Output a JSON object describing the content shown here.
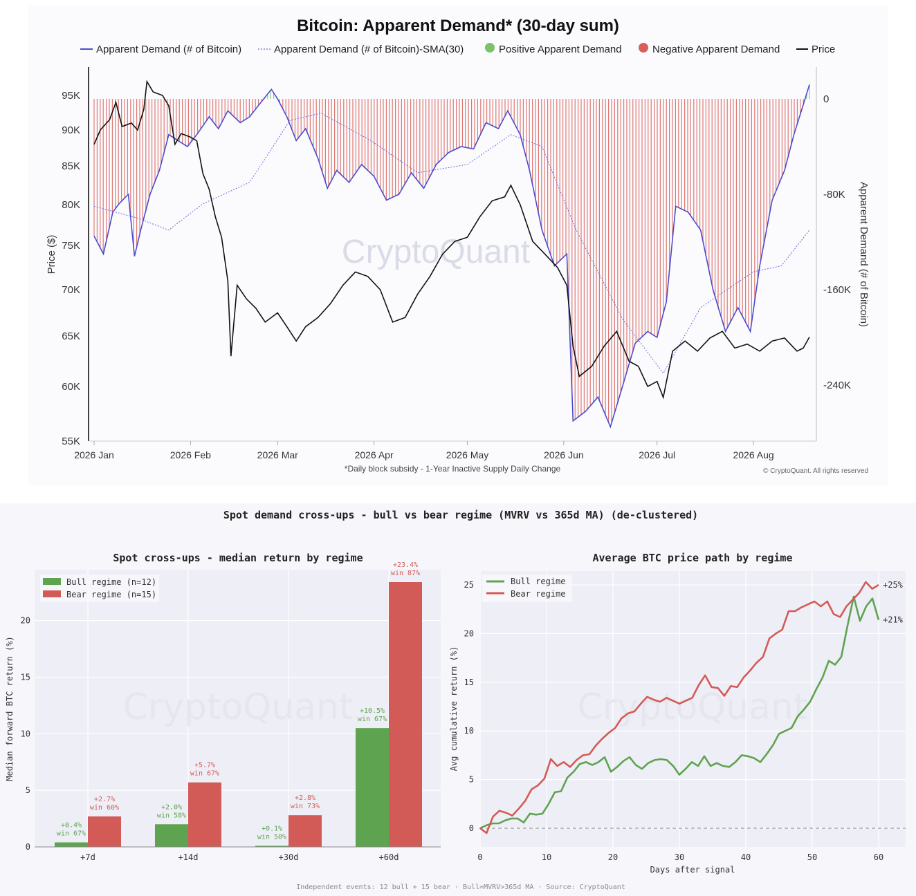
{
  "chart_data": [
    {
      "type": "line",
      "title": "Bitcoin: Apparent Demand* (30-day sum)",
      "ylabel": "Price ($)",
      "y2label": "Apparent Demand (# of Bitcoin)",
      "footnote": "*Daily block subsidy - 1-Year Inactive Supply Daily Change",
      "copyright": "© CryptoQuant. All rights reserved",
      "watermark": "CryptoQuant",
      "x_ticks": [
        "2026 Jan",
        "2026 Feb",
        "2026 Mar",
        "2026 Apr",
        "2026 May",
        "2026 Jun",
        "2026 Jul",
        "2026 Aug"
      ],
      "y_ticks": [
        "95K",
        "90K",
        "85K",
        "80K",
        "75K",
        "70K",
        "65K",
        "60K",
        "55K"
      ],
      "y2_ticks": [
        "0",
        "-80K",
        "-160K",
        "-240K"
      ],
      "ylim": [
        55000,
        98000
      ],
      "y2lim": [
        -287000,
        27000
      ],
      "legend": [
        {
          "label": "Apparent Demand (# of Bitcoin)",
          "color": "#4b4bd1",
          "style": "line"
        },
        {
          "label": "Apparent Demand (# of Bitcoin)-SMA(30)",
          "color": "#6a6ae0",
          "style": "dotted"
        },
        {
          "label": "Positive Apparent Demand",
          "color": "#7ac26b",
          "style": "dot"
        },
        {
          "label": "Negative Apparent Demand",
          "color": "#d9605a",
          "style": "dot"
        },
        {
          "label": "Price",
          "color": "#111111",
          "style": "line"
        }
      ],
      "series": [
        {
          "name": "Price",
          "unit": "USD",
          "points": [
            [
              "2026-01-01",
              88000
            ],
            [
              "2026-01-03",
              90000
            ],
            [
              "2026-01-06",
              91500
            ],
            [
              "2026-01-08",
              94000
            ],
            [
              "2026-01-10",
              90500
            ],
            [
              "2026-01-13",
              91000
            ],
            [
              "2026-01-15",
              90000
            ],
            [
              "2026-01-17",
              93000
            ],
            [
              "2026-01-18",
              97000
            ],
            [
              "2026-01-20",
              95500
            ],
            [
              "2026-01-23",
              95000
            ],
            [
              "2026-01-25",
              93500
            ],
            [
              "2026-01-27",
              88000
            ],
            [
              "2026-01-29",
              89500
            ],
            [
              "2026-02-01",
              89000
            ],
            [
              "2026-02-03",
              88500
            ],
            [
              "2026-02-05",
              84000
            ],
            [
              "2026-02-07",
              82000
            ],
            [
              "2026-02-09",
              78500
            ],
            [
              "2026-02-11",
              76000
            ],
            [
              "2026-02-13",
              71000
            ],
            [
              "2026-02-14",
              63000
            ],
            [
              "2026-02-16",
              70500
            ],
            [
              "2026-02-19",
              69000
            ],
            [
              "2026-02-22",
              68000
            ],
            [
              "2026-02-25",
              66500
            ],
            [
              "2026-03-01",
              67500
            ],
            [
              "2026-03-04",
              66000
            ],
            [
              "2026-03-07",
              64500
            ],
            [
              "2026-03-10",
              66000
            ],
            [
              "2026-03-14",
              67000
            ],
            [
              "2026-03-18",
              68500
            ],
            [
              "2026-03-22",
              70500
            ],
            [
              "2026-03-26",
              72000
            ],
            [
              "2026-03-30",
              71500
            ],
            [
              "2026-04-03",
              70000
            ],
            [
              "2026-04-07",
              66500
            ],
            [
              "2026-04-11",
              67000
            ],
            [
              "2026-04-15",
              69500
            ],
            [
              "2026-04-19",
              71500
            ],
            [
              "2026-04-23",
              74000
            ],
            [
              "2026-04-27",
              75500
            ],
            [
              "2026-05-01",
              76000
            ],
            [
              "2026-05-05",
              78500
            ],
            [
              "2026-05-09",
              80500
            ],
            [
              "2026-05-13",
              81000
            ],
            [
              "2026-05-15",
              82500
            ],
            [
              "2026-05-18",
              80000
            ],
            [
              "2026-05-22",
              75500
            ],
            [
              "2026-05-26",
              74000
            ],
            [
              "2026-05-30",
              72500
            ],
            [
              "2026-06-02",
              70500
            ],
            [
              "2026-06-04",
              64000
            ],
            [
              "2026-06-06",
              61000
            ],
            [
              "2026-06-10",
              62000
            ],
            [
              "2026-06-14",
              64000
            ],
            [
              "2026-06-18",
              65500
            ],
            [
              "2026-06-22",
              62500
            ],
            [
              "2026-06-25",
              62000
            ],
            [
              "2026-06-28",
              60000
            ],
            [
              "2026-07-01",
              60500
            ],
            [
              "2026-07-03",
              59000
            ],
            [
              "2026-07-06",
              63500
            ],
            [
              "2026-07-10",
              64500
            ],
            [
              "2026-07-14",
              63500
            ],
            [
              "2026-07-18",
              64800
            ],
            [
              "2026-07-22",
              65500
            ],
            [
              "2026-07-26",
              63800
            ],
            [
              "2026-07-30",
              64200
            ],
            [
              "2026-08-03",
              63500
            ],
            [
              "2026-08-07",
              64500
            ],
            [
              "2026-08-11",
              64800
            ],
            [
              "2026-08-15",
              63500
            ],
            [
              "2026-08-17",
              63800
            ],
            [
              "2026-08-19",
              64900
            ]
          ]
        },
        {
          "name": "Apparent Demand (# of Bitcoin)",
          "unit": "BTC",
          "points": [
            [
              "2026-01-01",
              -115000
            ],
            [
              "2026-01-04",
              -130000
            ],
            [
              "2026-01-07",
              -95000
            ],
            [
              "2026-01-09",
              -88000
            ],
            [
              "2026-01-12",
              -80000
            ],
            [
              "2026-01-14",
              -132000
            ],
            [
              "2026-01-16",
              -110000
            ],
            [
              "2026-01-19",
              -80000
            ],
            [
              "2026-01-22",
              -60000
            ],
            [
              "2026-01-25",
              -30000
            ],
            [
              "2026-01-28",
              -35000
            ],
            [
              "2026-01-31",
              -40000
            ],
            [
              "2026-02-03",
              -30000
            ],
            [
              "2026-02-07",
              -15000
            ],
            [
              "2026-02-10",
              -25000
            ],
            [
              "2026-02-13",
              -10000
            ],
            [
              "2026-02-17",
              -20000
            ],
            [
              "2026-02-20",
              -15000
            ],
            [
              "2026-02-23",
              -5000
            ],
            [
              "2026-02-27",
              8000
            ],
            [
              "2026-03-01",
              0
            ],
            [
              "2026-03-04",
              -15000
            ],
            [
              "2026-03-07",
              -35000
            ],
            [
              "2026-03-10",
              -25000
            ],
            [
              "2026-03-14",
              -50000
            ],
            [
              "2026-03-17",
              -75000
            ],
            [
              "2026-03-20",
              -60000
            ],
            [
              "2026-03-24",
              -70000
            ],
            [
              "2026-03-28",
              -55000
            ],
            [
              "2026-04-01",
              -65000
            ],
            [
              "2026-04-05",
              -85000
            ],
            [
              "2026-04-09",
              -80000
            ],
            [
              "2026-04-13",
              -62000
            ],
            [
              "2026-04-17",
              -75000
            ],
            [
              "2026-04-21",
              -55000
            ],
            [
              "2026-04-25",
              -45000
            ],
            [
              "2026-04-29",
              -40000
            ],
            [
              "2026-05-03",
              -42000
            ],
            [
              "2026-05-07",
              -20000
            ],
            [
              "2026-05-11",
              -25000
            ],
            [
              "2026-05-14",
              -10000
            ],
            [
              "2026-05-18",
              -30000
            ],
            [
              "2026-05-21",
              -60000
            ],
            [
              "2026-05-25",
              -110000
            ],
            [
              "2026-05-29",
              -140000
            ],
            [
              "2026-06-02",
              -130000
            ],
            [
              "2026-06-04",
              -270000
            ],
            [
              "2026-06-08",
              -262000
            ],
            [
              "2026-06-12",
              -250000
            ],
            [
              "2026-06-16",
              -275000
            ],
            [
              "2026-06-20",
              -240000
            ],
            [
              "2026-06-24",
              -205000
            ],
            [
              "2026-06-28",
              -195000
            ],
            [
              "2026-07-01",
              -200000
            ],
            [
              "2026-07-04",
              -170000
            ],
            [
              "2026-07-07",
              -90000
            ],
            [
              "2026-07-11",
              -95000
            ],
            [
              "2026-07-15",
              -110000
            ],
            [
              "2026-07-19",
              -160000
            ],
            [
              "2026-07-23",
              -195000
            ],
            [
              "2026-07-27",
              -175000
            ],
            [
              "2026-07-31",
              -195000
            ],
            [
              "2026-08-03",
              -140000
            ],
            [
              "2026-08-07",
              -85000
            ],
            [
              "2026-08-11",
              -60000
            ],
            [
              "2026-08-14",
              -30000
            ],
            [
              "2026-08-17",
              -5000
            ],
            [
              "2026-08-19",
              12000
            ]
          ]
        },
        {
          "name": "Apparent Demand (# of Bitcoin)-SMA(30)",
          "unit": "BTC",
          "points": [
            [
              "2026-01-01",
              -90000
            ],
            [
              "2026-01-15",
              -100000
            ],
            [
              "2026-01-25",
              -110000
            ],
            [
              "2026-02-05",
              -88000
            ],
            [
              "2026-02-20",
              -70000
            ],
            [
              "2026-03-05",
              -18000
            ],
            [
              "2026-03-15",
              -12000
            ],
            [
              "2026-03-31",
              -35000
            ],
            [
              "2026-04-15",
              -62000
            ],
            [
              "2026-05-01",
              -55000
            ],
            [
              "2026-05-15",
              -30000
            ],
            [
              "2026-05-25",
              -40000
            ],
            [
              "2026-06-05",
              -110000
            ],
            [
              "2026-06-20",
              -185000
            ],
            [
              "2026-07-03",
              -230000
            ],
            [
              "2026-07-15",
              -175000
            ],
            [
              "2026-08-01",
              -145000
            ],
            [
              "2026-08-10",
              -140000
            ],
            [
              "2026-08-19",
              -110000
            ]
          ]
        }
      ]
    },
    {
      "type": "bar",
      "suptitle": "Spot demand cross-ups - bull vs bear regime (MVRV vs 365d MA)  (de-clustered)",
      "title": "Spot cross-ups - median return by regime",
      "ylabel": "Median forward BTC return (%)",
      "watermark": "CryptoQuant",
      "categories": [
        "+7d",
        "+14d",
        "+30d",
        "+60d"
      ],
      "ylim": [
        0,
        25
      ],
      "y_ticks": [
        "0",
        "5",
        "10",
        "15",
        "20"
      ],
      "legend_position": "top-left",
      "series": [
        {
          "name": "Bull regime (n=12)",
          "color": "#5ea34f",
          "values": [
            0.4,
            2.0,
            0.1,
            10.5
          ],
          "labels": [
            "+0.4%",
            "+2.0%",
            "+0.1%",
            "+10.5%"
          ],
          "win": [
            "win 67%",
            "win 58%",
            "win 50%",
            "win 67%"
          ]
        },
        {
          "name": "Bear regime (n=15)",
          "color": "#d25b57",
          "values": [
            2.7,
            5.7,
            2.8,
            23.4
          ],
          "labels": [
            "+2.7%",
            "+5.7%",
            "+2.8%",
            "+23.4%"
          ],
          "win": [
            "win 60%",
            "win 67%",
            "win 73%",
            "win 87%"
          ]
        }
      ]
    },
    {
      "type": "line",
      "title": "Average BTC price path by regime",
      "xlabel": "Days after signal",
      "ylabel": "Avg cumulative return (%)",
      "watermark": "CryptoQuant",
      "xlim": [
        0,
        61
      ],
      "ylim": [
        -2,
        26
      ],
      "x_ticks": [
        "0",
        "10",
        "20",
        "30",
        "40",
        "50",
        "60"
      ],
      "y_ticks": [
        "0",
        "5",
        "10",
        "15",
        "20",
        "25"
      ],
      "legend_position": "top-left",
      "end_labels": [
        "+25%",
        "+21%"
      ],
      "series": [
        {
          "name": "Bull regime",
          "color": "#5ea34f",
          "values": [
            0,
            0.3,
            0.5,
            0.5,
            0.8,
            1.0,
            1.0,
            0.6,
            1.5,
            1.4,
            1.5,
            2.5,
            3.7,
            3.8,
            5.2,
            5.8,
            6.6,
            6.8,
            6.5,
            6.8,
            7.3,
            5.8,
            6.3,
            6.9,
            7.3,
            6.5,
            6.1,
            6.7,
            7.0,
            7.1,
            7.0,
            6.4,
            5.5,
            6.1,
            6.8,
            6.4,
            7.4,
            6.4,
            6.7,
            6.4,
            6.3,
            6.8,
            7.5,
            7.4,
            7.2,
            6.8,
            7.6,
            8.5,
            9.7,
            10.0,
            10.3,
            11.5,
            12.2,
            13.0,
            14.3,
            15.5,
            17.2,
            16.8,
            17.6,
            20.8,
            23.8,
            21.3,
            22.8,
            23.6,
            21.4
          ]
        },
        {
          "name": "Bear regime",
          "color": "#d25b57",
          "values": [
            0,
            -0.5,
            1.2,
            1.8,
            1.6,
            1.3,
            2.0,
            2.8,
            4.0,
            4.4,
            5.1,
            7.1,
            6.4,
            6.8,
            6.3,
            7.0,
            7.5,
            7.6,
            8.5,
            9.2,
            9.8,
            10.3,
            11.3,
            11.8,
            12.0,
            12.8,
            13.5,
            13.2,
            13.0,
            13.4,
            13.1,
            12.8,
            13.1,
            13.4,
            14.7,
            15.7,
            14.5,
            14.4,
            13.6,
            14.6,
            14.5,
            15.5,
            16.2,
            17.0,
            17.6,
            19.5,
            20.0,
            20.4,
            22.3,
            22.3,
            22.7,
            23.0,
            23.3,
            22.8,
            23.3,
            22.0,
            21.7,
            22.8,
            23.5,
            24.2,
            25.3,
            24.6,
            25.0
          ]
        }
      ]
    }
  ],
  "bottom_footnote": "Independent events: 12 bull + 15 bear · Bull=MVRV>365d MA · Source: CryptoQuant"
}
